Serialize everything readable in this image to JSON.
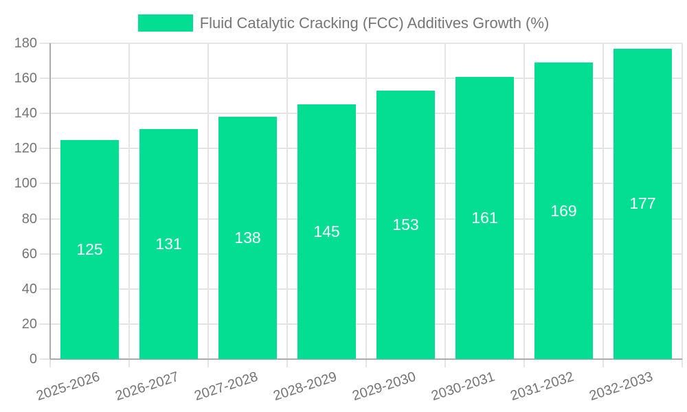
{
  "legend": {
    "label": "Fluid Catalytic Cracking (FCC) Additives Growth (%)"
  },
  "colors": {
    "bar": "#04de92",
    "axis_line": "#ababab",
    "grid_line": "#e4e4e4",
    "tick_label": "#757575",
    "value_label": "#ffffff",
    "background": "#ffffff"
  },
  "chart_data": {
    "type": "bar",
    "title": "",
    "xlabel": "",
    "ylabel": "",
    "categories": [
      "2025-2026",
      "2026-2027",
      "2027-2028",
      "2028-2029",
      "2029-2030",
      "2030-2031",
      "2031-2032",
      "2032-2033"
    ],
    "series": [
      {
        "name": "Fluid Catalytic Cracking (FCC) Additives Growth (%)",
        "values": [
          125,
          131,
          138,
          145,
          153,
          161,
          169,
          177
        ]
      }
    ],
    "value_labels_position": "inside-center",
    "ylim": [
      0,
      180
    ],
    "ytick_step": 20,
    "yticks": [
      0,
      20,
      40,
      60,
      80,
      100,
      120,
      140,
      160,
      180
    ],
    "grid": true,
    "legend_position": "top-center",
    "x_label_rotation_deg": -18
  }
}
